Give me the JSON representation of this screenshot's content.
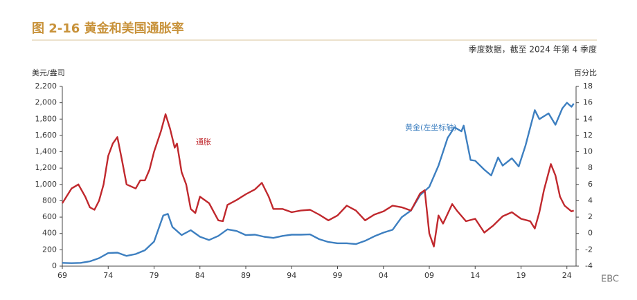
{
  "chart_data": {
    "type": "line",
    "title": "图 2-16  黄金和美国通胀率",
    "subtitle": "季度数据，截至 2024 年第 4 季度",
    "y_label": "美元/盎司",
    "y2_label": "百分比",
    "watermark": "EBC",
    "annotations": [
      "通胀",
      "黄金(左坐标轴)"
    ],
    "xlim": [
      1969,
      2025
    ],
    "xticks": [
      {
        "value": 1969,
        "label": "69"
      },
      {
        "value": 1974,
        "label": "74"
      },
      {
        "value": 1979,
        "label": "79"
      },
      {
        "value": 1984,
        "label": "84"
      },
      {
        "value": 1989,
        "label": "89"
      },
      {
        "value": 1994,
        "label": "94"
      },
      {
        "value": 1999,
        "label": "99"
      },
      {
        "value": 2004,
        "label": "04"
      },
      {
        "value": 2009,
        "label": "09"
      },
      {
        "value": 2014,
        "label": "14"
      },
      {
        "value": 2019,
        "label": "19"
      },
      {
        "value": 2024,
        "label": "24"
      }
    ],
    "ylim": [
      0,
      2200
    ],
    "yticks": [
      0,
      200,
      400,
      600,
      800,
      {
        "value": 1000,
        "label": "1,000"
      },
      {
        "value": 1200,
        "label": "1,200"
      },
      {
        "value": 1400,
        "label": "1,400"
      },
      {
        "value": 1600,
        "label": "1,600"
      },
      {
        "value": 1800,
        "label": "1,800"
      },
      {
        "value": 2000,
        "label": "2,000"
      },
      {
        "value": 2200,
        "label": "2,200"
      }
    ],
    "y2lim": [
      -4,
      18
    ],
    "y2ticks": [
      -4,
      -2,
      0,
      2,
      4,
      6,
      8,
      10,
      12,
      14,
      16,
      18
    ],
    "grid": false,
    "series": [
      {
        "name": "黄金(左坐标轴)",
        "color": "#3d7fc0",
        "axis": "y",
        "x": [
          1969,
          1970,
          1971,
          1972,
          1973,
          1974,
          1975,
          1976,
          1977,
          1978,
          1979,
          1980,
          1980.5,
          1981,
          1982,
          1983,
          1984,
          1985,
          1986,
          1987,
          1988,
          1989,
          1990,
          1991,
          1992,
          1993,
          1994,
          1995,
          1996,
          1997,
          1998,
          1999,
          2000,
          2001,
          2002,
          2003,
          2004,
          2005,
          2006,
          2007,
          2008,
          2009,
          2010,
          2011,
          2011.75,
          2012.5,
          2012.75,
          2013.5,
          2014,
          2015,
          2015.75,
          2016.5,
          2017,
          2018,
          2018.75,
          2019.5,
          2020.5,
          2021,
          2022,
          2022.75,
          2023.5,
          2024,
          2024.5,
          2024.75
        ],
        "values": [
          40,
          36,
          40,
          58,
          97,
          160,
          165,
          125,
          148,
          195,
          300,
          620,
          640,
          480,
          380,
          440,
          360,
          320,
          370,
          450,
          430,
          380,
          385,
          360,
          345,
          370,
          385,
          385,
          388,
          330,
          295,
          280,
          280,
          270,
          310,
          365,
          410,
          445,
          600,
          680,
          870,
          970,
          1230,
          1570,
          1700,
          1650,
          1720,
          1300,
          1290,
          1180,
          1110,
          1330,
          1230,
          1320,
          1220,
          1480,
          1910,
          1800,
          1870,
          1730,
          1930,
          2000,
          1950,
          1990
        ]
      },
      {
        "name": "通胀",
        "color": "#c0282d",
        "axis": "y2",
        "x": [
          1969,
          1970,
          1970.75,
          1971.5,
          1972,
          1972.5,
          1973,
          1973.5,
          1974,
          1974.5,
          1975,
          1975.5,
          1976,
          1977,
          1977.5,
          1978,
          1978.5,
          1979,
          1979.75,
          1980.25,
          1980.75,
          1981.25,
          1981.5,
          1982,
          1982.5,
          1983,
          1983.5,
          1984,
          1985,
          1986,
          1986.5,
          1987,
          1988,
          1989,
          1990,
          1990.75,
          1991.5,
          1992,
          1993,
          1994,
          1995,
          1996,
          1997,
          1998,
          1999,
          2000,
          2001,
          2002,
          2003,
          2004,
          2005,
          2006,
          2007,
          2008,
          2008.5,
          2009,
          2009.5,
          2010,
          2010.5,
          2011.5,
          2012,
          2013,
          2014,
          2015,
          2016,
          2017,
          2018,
          2019,
          2020,
          2020.5,
          2021,
          2021.5,
          2022.25,
          2022.75,
          2023.25,
          2023.75,
          2024.5,
          2024.75
        ],
        "values": [
          3.7,
          5.5,
          6,
          4.5,
          3.2,
          2.9,
          4,
          6,
          9.5,
          11,
          11.8,
          9,
          6,
          5.5,
          6.5,
          6.5,
          7.8,
          10,
          12.5,
          14.6,
          12.8,
          10.5,
          11,
          7.5,
          6,
          3,
          2.5,
          4.5,
          3.7,
          1.6,
          1.5,
          3.5,
          4.1,
          4.8,
          5.4,
          6.2,
          4.5,
          3,
          3,
          2.6,
          2.8,
          2.9,
          2.3,
          1.6,
          2.2,
          3.4,
          2.8,
          1.6,
          2.3,
          2.7,
          3.4,
          3.2,
          2.8,
          4.9,
          5.3,
          0,
          -1.6,
          2.2,
          1.2,
          3.6,
          2.8,
          1.5,
          1.8,
          0.1,
          1,
          2.1,
          2.6,
          1.8,
          1.5,
          0.6,
          2.6,
          5.3,
          8.5,
          7.1,
          4.5,
          3.4,
          2.7,
          2.8
        ]
      }
    ]
  }
}
